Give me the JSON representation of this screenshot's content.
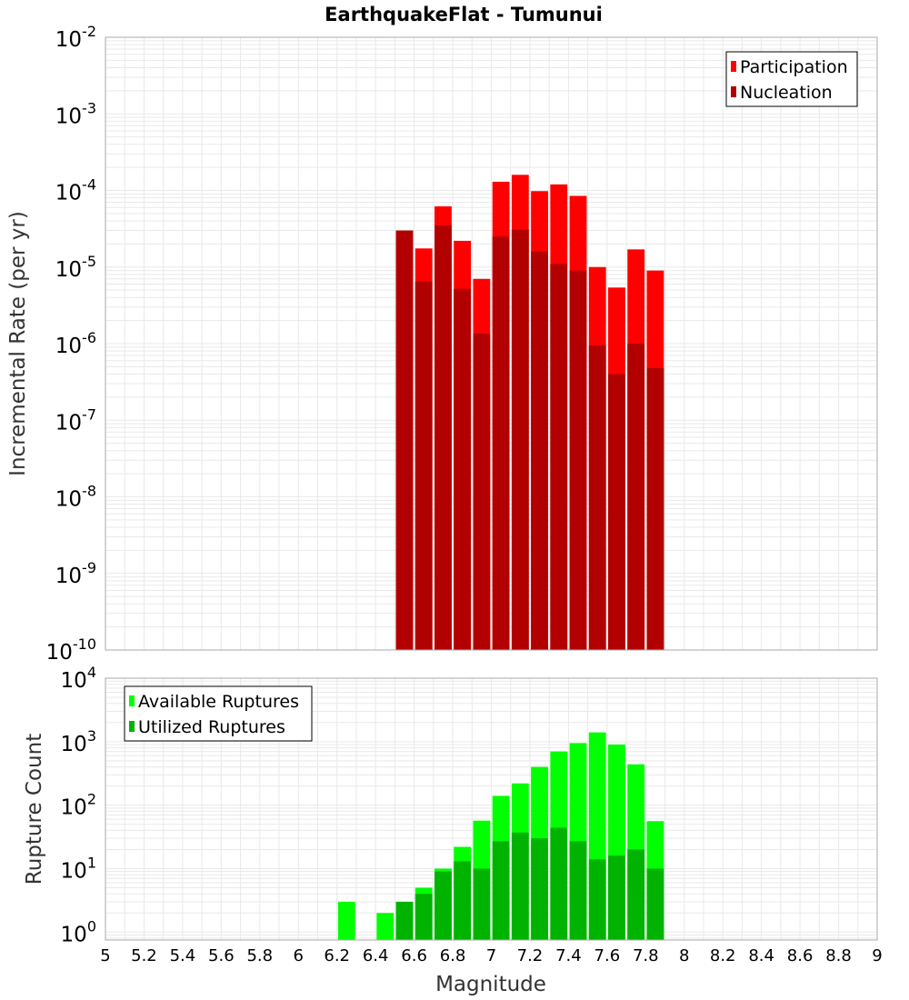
{
  "chart_data": [
    {
      "type": "bar",
      "title": "EarthquakeFlat - Tumunui",
      "xlabel": "",
      "ylabel": "Incremental Rate (per yr)",
      "yscale": "log",
      "ylim": [
        1e-10,
        0.01
      ],
      "xlim": [
        5,
        9
      ],
      "bin_width": 0.1,
      "grid": true,
      "legend_position": "top-right",
      "y_tick_exponents": [
        "-2",
        "-3",
        "-4",
        "-5",
        "-6",
        "-7",
        "-8",
        "-9",
        "-10"
      ],
      "y_tick_base": "10",
      "x": [
        6.55,
        6.65,
        6.75,
        6.85,
        6.95,
        7.05,
        7.15,
        7.25,
        7.35,
        7.45,
        7.55,
        7.65,
        7.75,
        7.85
      ],
      "series": [
        {
          "name": "Participation",
          "color": "#ff0000",
          "values": [
            3e-05,
            1.75e-05,
            6.2e-05,
            2.2e-05,
            7e-06,
            0.00013,
            0.00016,
            9.8e-05,
            0.00012,
            8.5e-05,
            1e-05,
            5.4e-06,
            1.7e-05,
            9e-06
          ]
        },
        {
          "name": "Nucleation",
          "color": "#b20000",
          "values": [
            3e-05,
            6.5e-06,
            3.5e-05,
            5.2e-06,
            1.35e-06,
            2.5e-05,
            3.1e-05,
            1.6e-05,
            1.1e-05,
            9e-06,
            9.5e-07,
            4e-07,
            1e-06,
            4.8e-07
          ]
        }
      ]
    },
    {
      "type": "bar",
      "title": "",
      "xlabel": "Magnitude",
      "ylabel": "Rupture Count",
      "yscale": "log",
      "ylim": [
        0.75,
        10000
      ],
      "xlim": [
        5,
        9
      ],
      "bin_width": 0.1,
      "grid": true,
      "legend_position": "top-left",
      "y_tick_exponents": [
        "4",
        "3",
        "2",
        "1",
        "0"
      ],
      "y_tick_base": "10",
      "x_ticks": [
        "5",
        "5.2",
        "5.4",
        "5.6",
        "5.8",
        "6",
        "6.2",
        "6.4",
        "6.6",
        "6.8",
        "7",
        "7.2",
        "7.4",
        "7.6",
        "7.8",
        "8",
        "8.2",
        "8.4",
        "8.6",
        "8.8",
        "9"
      ],
      "x": [
        6.25,
        6.45,
        6.55,
        6.65,
        6.75,
        6.85,
        6.95,
        7.05,
        7.15,
        7.25,
        7.35,
        7.45,
        7.55,
        7.65,
        7.75,
        7.85
      ],
      "series": [
        {
          "name": "Available Ruptures",
          "color": "#00ff00",
          "values": [
            3,
            2,
            3,
            5,
            10,
            22,
            57,
            140,
            220,
            400,
            700,
            950,
            1400,
            900,
            440,
            56
          ]
        },
        {
          "name": "Utilized Ruptures",
          "color": "#00b300",
          "values": [
            0,
            0,
            3,
            4,
            9,
            13,
            10,
            27,
            37,
            30,
            44,
            27,
            14,
            16,
            20,
            10
          ]
        }
      ]
    }
  ]
}
